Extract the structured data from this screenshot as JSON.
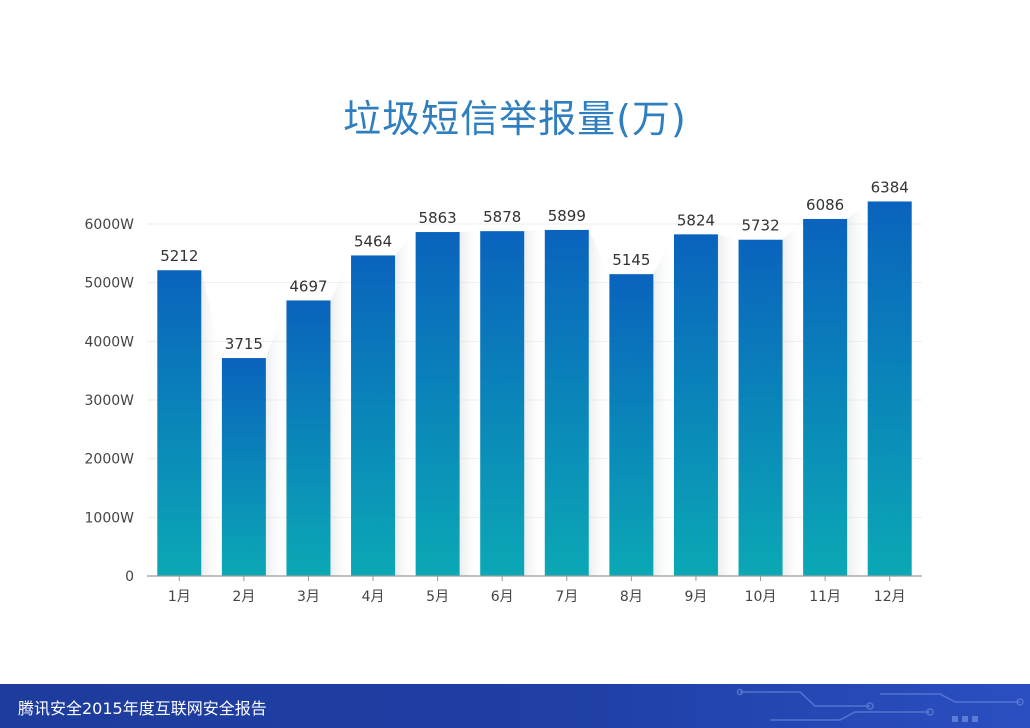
{
  "footer": {
    "text": "腾讯安全2015年度互联网安全报告"
  },
  "colors": {
    "title": "#2f7fc0",
    "bar_top": "#0a63bd",
    "bar_bottom": "#0ba8b5",
    "footer": "#1f3fa6"
  },
  "chart_data": {
    "type": "bar",
    "title": "垃圾短信举报量(万)",
    "xlabel": "",
    "ylabel": "",
    "categories": [
      "1月",
      "2月",
      "3月",
      "4月",
      "5月",
      "6月",
      "7月",
      "8月",
      "9月",
      "10月",
      "11月",
      "12月"
    ],
    "values": [
      5212,
      3715,
      4697,
      5464,
      5863,
      5878,
      5899,
      5145,
      5824,
      5732,
      6086,
      6384
    ],
    "ylim": [
      0,
      6000
    ],
    "yticks": [
      0,
      1000,
      2000,
      3000,
      4000,
      5000,
      6000
    ],
    "ytick_labels": [
      "0",
      "1000W",
      "2000W",
      "3000W",
      "4000W",
      "5000W",
      "6000W"
    ],
    "grid": true,
    "legend": "none"
  }
}
